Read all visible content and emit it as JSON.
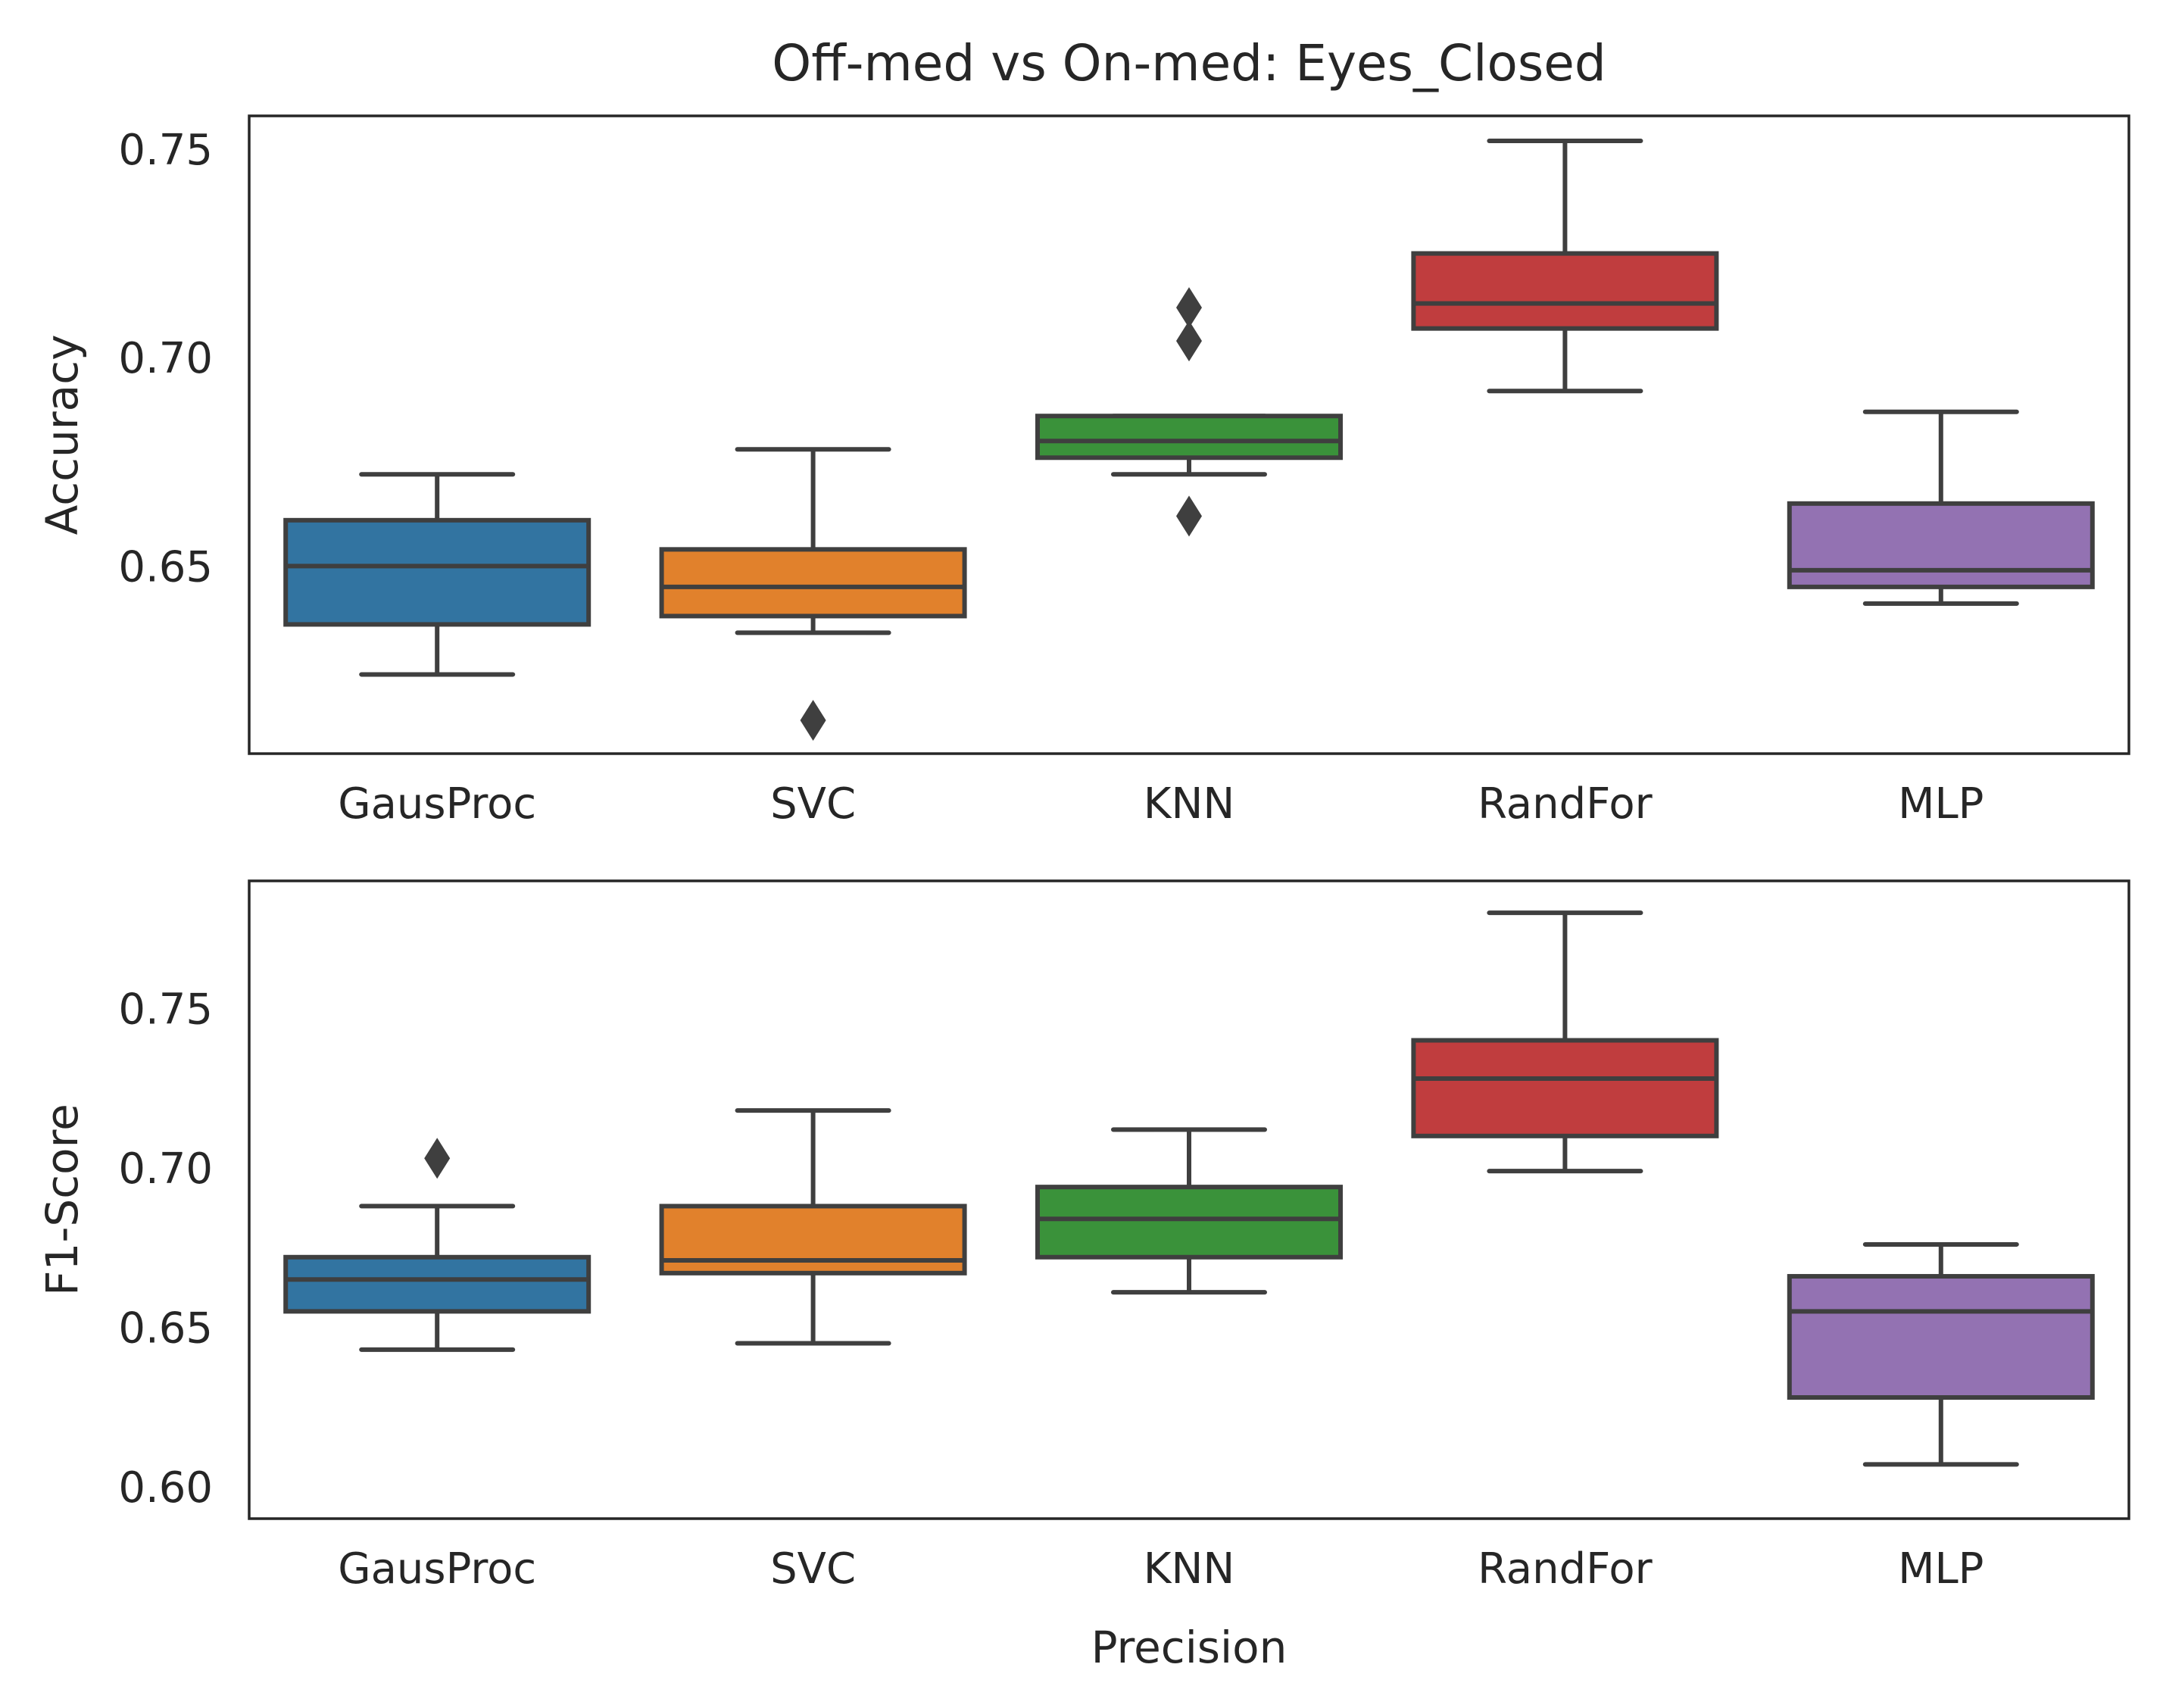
{
  "chart_data": [
    {
      "type": "box",
      "title": "Off-med vs On-med: Eyes_Closed",
      "xlabel": "",
      "ylabel": "Accuracy",
      "ylim": [
        0.605,
        0.758
      ],
      "yticks": [
        0.65,
        0.7,
        0.75
      ],
      "ytick_labels": [
        "0.65",
        "0.70",
        "0.75"
      ],
      "categories": [
        "GausProc",
        "SVC",
        "KNN",
        "RandFor",
        "MLP"
      ],
      "colors": [
        "#3274a1",
        "#e1812c",
        "#3a923a",
        "#c03d3e",
        "#9372b2"
      ],
      "grid": false,
      "boxes": [
        {
          "category": "GausProc",
          "whisker_low": 0.624,
          "q1": 0.636,
          "median": 0.65,
          "q3": 0.661,
          "whisker_high": 0.672,
          "outliers": []
        },
        {
          "category": "SVC",
          "whisker_low": 0.634,
          "q1": 0.638,
          "median": 0.645,
          "q3": 0.654,
          "whisker_high": 0.678,
          "outliers": [
            0.613
          ]
        },
        {
          "category": "KNN",
          "whisker_low": 0.672,
          "q1": 0.676,
          "median": 0.68,
          "q3": 0.686,
          "whisker_high": 0.686,
          "outliers": [
            0.704,
            0.712,
            0.662
          ]
        },
        {
          "category": "RandFor",
          "whisker_low": 0.692,
          "q1": 0.707,
          "median": 0.713,
          "q3": 0.725,
          "whisker_high": 0.752,
          "outliers": []
        },
        {
          "category": "MLP",
          "whisker_low": 0.641,
          "q1": 0.645,
          "median": 0.649,
          "q3": 0.665,
          "whisker_high": 0.687,
          "outliers": []
        }
      ]
    },
    {
      "type": "box",
      "title": "",
      "xlabel": "Precision",
      "ylabel": "F1-Score",
      "ylim": [
        0.59,
        0.79
      ],
      "yticks": [
        0.6,
        0.65,
        0.7,
        0.75
      ],
      "ytick_labels": [
        "0.60",
        "0.65",
        "0.70",
        "0.75"
      ],
      "categories": [
        "GausProc",
        "SVC",
        "KNN",
        "RandFor",
        "MLP"
      ],
      "colors": [
        "#3274a1",
        "#e1812c",
        "#3a923a",
        "#c03d3e",
        "#9372b2"
      ],
      "grid": false,
      "boxes": [
        {
          "category": "GausProc",
          "whisker_low": 0.643,
          "q1": 0.655,
          "median": 0.665,
          "q3": 0.672,
          "whisker_high": 0.688,
          "outliers": [
            0.703
          ]
        },
        {
          "category": "SVC",
          "whisker_low": 0.645,
          "q1": 0.667,
          "median": 0.671,
          "q3": 0.688,
          "whisker_high": 0.718,
          "outliers": []
        },
        {
          "category": "KNN",
          "whisker_low": 0.661,
          "q1": 0.672,
          "median": 0.684,
          "q3": 0.694,
          "whisker_high": 0.712,
          "outliers": []
        },
        {
          "category": "RandFor",
          "whisker_low": 0.699,
          "q1": 0.71,
          "median": 0.728,
          "q3": 0.74,
          "whisker_high": 0.78,
          "outliers": []
        },
        {
          "category": "MLP",
          "whisker_low": 0.607,
          "q1": 0.628,
          "median": 0.655,
          "q3": 0.666,
          "whisker_high": 0.676,
          "outliers": []
        }
      ]
    }
  ]
}
